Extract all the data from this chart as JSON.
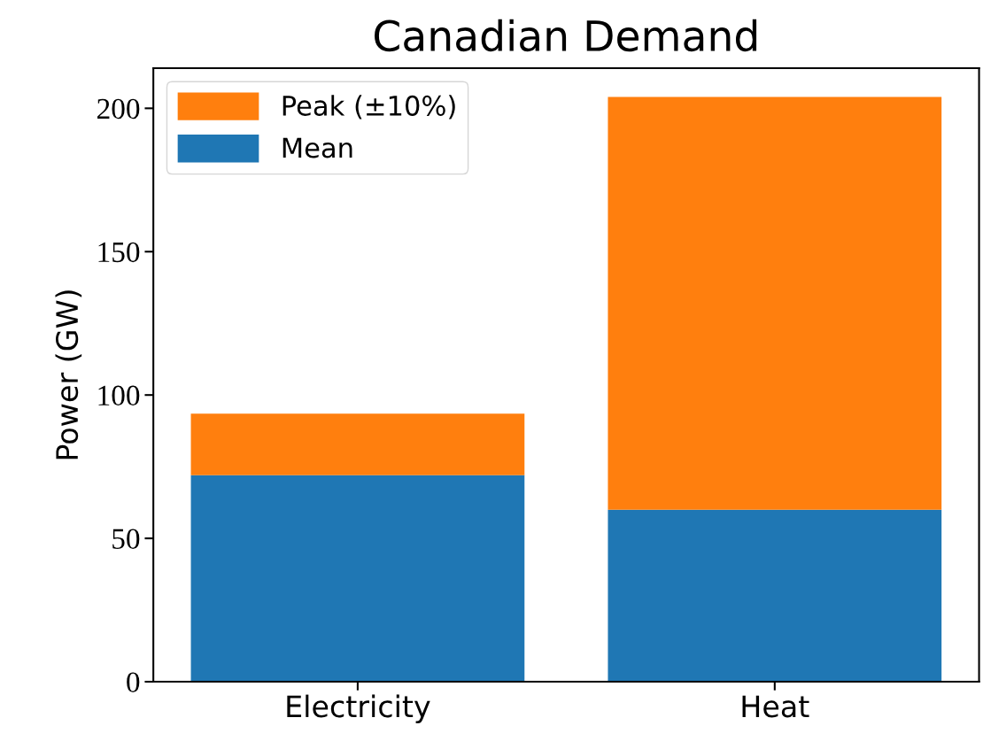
{
  "chart_data": {
    "type": "bar",
    "title": "Canadian Demand",
    "ylabel": "Power (GW)",
    "categories": [
      "Electricity",
      "Heat"
    ],
    "stacked": true,
    "series": [
      {
        "name": "Mean",
        "color": "#1f77b4",
        "values": [
          72,
          60
        ]
      },
      {
        "name": "Peak (±10%)",
        "color": "#ff7f0e",
        "values": [
          21.5,
          144
        ]
      }
    ],
    "ylim": [
      0,
      214
    ],
    "yticks": [
      0,
      50,
      100,
      150,
      200
    ],
    "grid": false,
    "legend": "top left"
  }
}
